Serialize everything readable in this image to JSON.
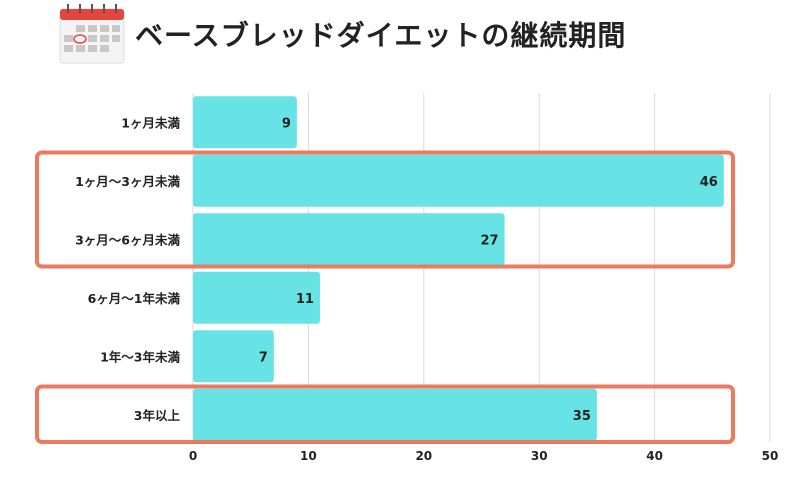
{
  "chart_data": {
    "type": "bar",
    "orientation": "horizontal",
    "title": "ベースブレッドダイエットの継続期間",
    "categories": [
      "1ヶ月未満",
      "1ヶ月〜3ヶ月未満",
      "3ヶ月〜6ヶ月未満",
      "6ヶ月〜1年未満",
      "1年〜3年未満",
      "3年以上"
    ],
    "values": [
      9,
      46,
      27,
      11,
      7,
      35
    ],
    "xlim": [
      0,
      50
    ],
    "xticks": [
      0,
      10,
      20,
      30,
      40,
      50
    ],
    "grid": true,
    "highlighted": [
      [
        "1ヶ月〜3ヶ月未満",
        "3ヶ月〜6ヶ月未満"
      ],
      [
        "3年以上"
      ]
    ],
    "colors": {
      "bar": "#67e3e6",
      "highlight": "#ec7a5f",
      "grid": "#d9d9d9",
      "text": "#222222"
    },
    "title_icon": "calendar-icon"
  }
}
